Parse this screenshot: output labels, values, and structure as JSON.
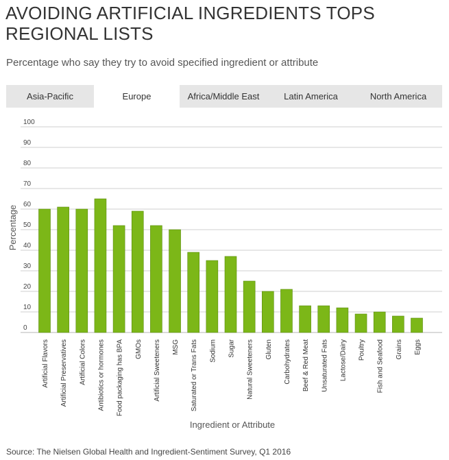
{
  "header": {
    "title": "AVOIDING ARTIFICIAL INGREDIENTS TOPS REGIONAL LISTS",
    "subtitle": "Percentage who say they try to avoid specified ingredient or attribute"
  },
  "tabs": [
    {
      "label": "Asia-Pacific",
      "active": false
    },
    {
      "label": "Europe",
      "active": true
    },
    {
      "label": "Africa/Middle East",
      "active": false
    },
    {
      "label": "Latin America",
      "active": false
    },
    {
      "label": "North America",
      "active": false
    }
  ],
  "footer": {
    "source": "Source: The Nielsen Global Health and Ingredient-Sentiment Survey, Q1 2016"
  },
  "colors": {
    "bar": "#7cb718",
    "bar_stroke": "#5a8a0e",
    "grid": "#cfcfcf",
    "tab_bg": "#e6e6e6",
    "tab_active_bg": "#ffffff"
  },
  "chart_data": {
    "type": "bar",
    "xlabel": "Ingredient or Attribute",
    "ylabel": "Percentage",
    "ylim": [
      0,
      100
    ],
    "yticks": [
      0,
      10,
      20,
      30,
      40,
      50,
      60,
      70,
      80,
      90,
      100
    ],
    "grid": true,
    "categories": [
      "Artificial Flavors",
      "Artificial Preservatives",
      "Artificial Colors",
      "Antibiotics or hormones",
      "Food packaging has BPA",
      "GMOs",
      "Artificial Sweeteners",
      "MSG",
      "Saturated or Trans Fats",
      "Sodium",
      "Sugar",
      "Natural Sweeteners",
      "Gluten",
      "Carbohydrates",
      "Beef & Red Meat",
      "Unsaturated Fats",
      "Lactose/Dairy",
      "Poultry",
      "Fish and Seafood",
      "Grains",
      "Eggs"
    ],
    "values": [
      60,
      61,
      60,
      65,
      52,
      59,
      52,
      50,
      39,
      35,
      37,
      25,
      20,
      21,
      13,
      13,
      12,
      9,
      10,
      8,
      7
    ]
  }
}
